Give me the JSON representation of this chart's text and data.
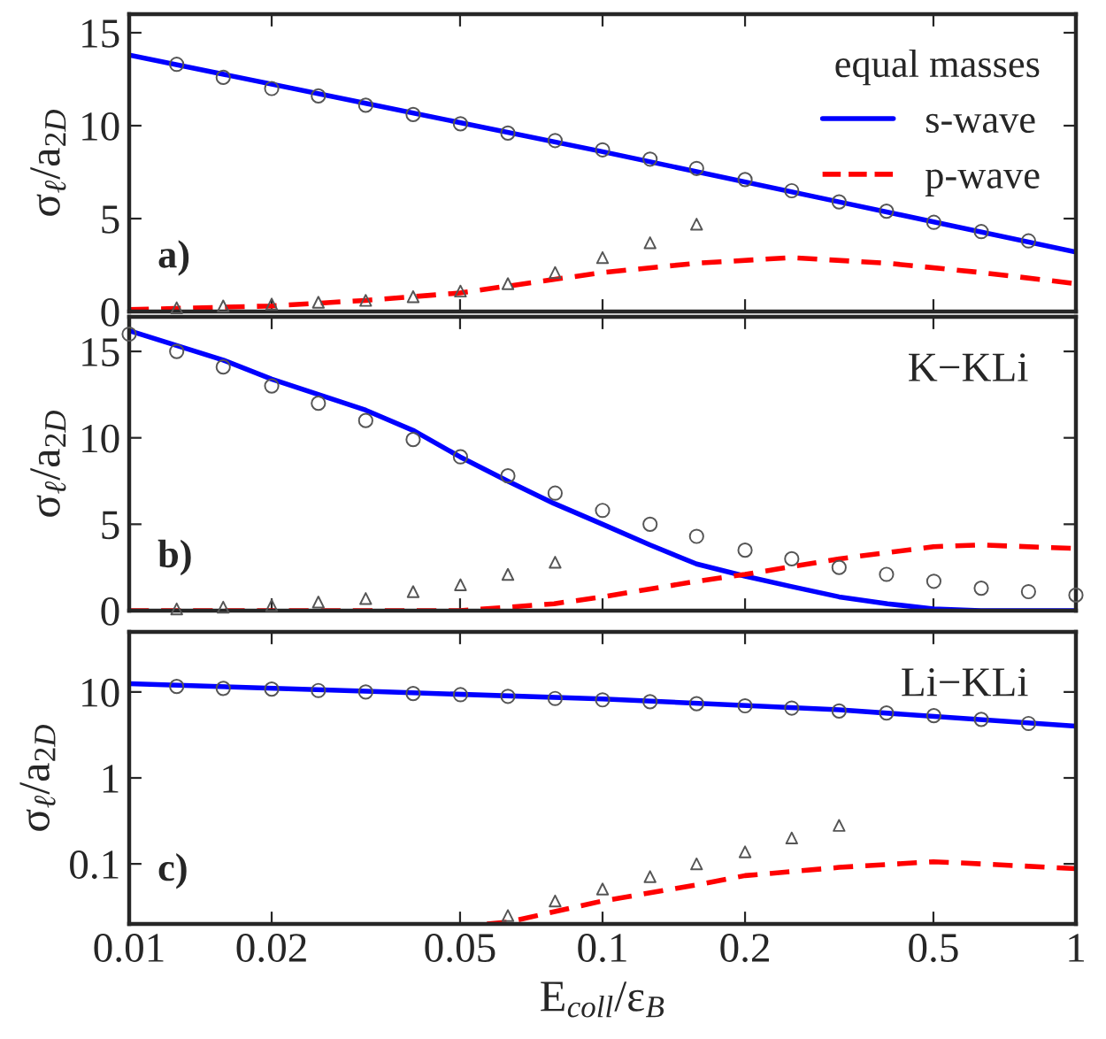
{
  "chart_data": [
    {
      "type": "line",
      "ylabel": "σ$_{ℓ}$/a$_{2D}$",
      "log": "x",
      "xlim": [
        0.01,
        1
      ],
      "xticks": [
        0.01,
        0.02,
        0.05,
        0.1,
        0.2,
        0.5,
        1
      ],
      "ylim": [
        0,
        16
      ],
      "yticks": [
        0,
        5,
        10,
        15
      ],
      "tick_labels": "y",
      "grid": false,
      "legend": "top right",
      "legend_title": "equal masses",
      "annotations": [
        "a)"
      ],
      "series": [
        {
          "name": "s-wave",
          "color": "#0000ff",
          "line_style": "solid",
          "x": [
            0.01,
            0.0316,
            0.1,
            0.316,
            1
          ],
          "values": [
            13.8,
            11.2,
            8.6,
            5.9,
            3.2
          ]
        },
        {
          "name": "p-wave",
          "color": "#ff0000",
          "line_style": "dashed",
          "x": [
            0.01,
            0.02,
            0.0316,
            0.05,
            0.1,
            0.158,
            0.25,
            0.4,
            0.63,
            1
          ],
          "values": [
            0.1,
            0.3,
            0.6,
            1.0,
            2.1,
            2.6,
            2.9,
            2.6,
            2.1,
            1.5
          ]
        },
        {
          "type": "scatter",
          "color": "#555555",
          "marker": "circle",
          "x": [
            0.0126,
            0.0158,
            0.02,
            0.0251,
            0.0316,
            0.0398,
            0.0501,
            0.0631,
            0.0794,
            0.1,
            0.126,
            0.158,
            0.2,
            0.251,
            0.316,
            0.398,
            0.501,
            0.631,
            0.794
          ],
          "values": [
            13.3,
            12.6,
            12.0,
            11.6,
            11.1,
            10.6,
            10.1,
            9.6,
            9.2,
            8.7,
            8.2,
            7.7,
            7.1,
            6.5,
            5.9,
            5.4,
            4.8,
            4.3,
            3.8
          ]
        },
        {
          "type": "scatter",
          "color": "#555555",
          "marker": "triangle",
          "x": [
            0.0126,
            0.0158,
            0.02,
            0.0251,
            0.0316,
            0.0398,
            0.0501,
            0.0631,
            0.0794,
            0.1,
            0.126,
            0.158
          ],
          "values": [
            0.2,
            0.3,
            0.4,
            0.5,
            0.6,
            0.8,
            1.1,
            1.5,
            2.1,
            2.9,
            3.7,
            4.7
          ]
        }
      ]
    },
    {
      "type": "line",
      "ylabel": "σ$_{ℓ}$/a$_{2D}$",
      "log": "x",
      "xlim": [
        0.01,
        1
      ],
      "xticks": [
        0.01,
        0.02,
        0.05,
        0.1,
        0.2,
        0.5,
        1
      ],
      "ylim": [
        0,
        17
      ],
      "yticks": [
        0,
        5,
        10,
        15
      ],
      "tick_labels": "y",
      "grid": false,
      "annotations": [
        "b)",
        "K−KLi"
      ],
      "series": [
        {
          "color": "#0000ff",
          "line_style": "solid",
          "x": [
            0.01,
            0.0158,
            0.02,
            0.0316,
            0.04,
            0.05,
            0.063,
            0.079,
            0.1,
            0.126,
            0.158,
            0.2,
            0.25,
            0.316,
            0.4,
            0.5,
            0.63,
            1
          ],
          "values": [
            16.2,
            14.5,
            13.4,
            11.6,
            10.4,
            8.9,
            7.5,
            6.2,
            5.0,
            3.8,
            2.7,
            2.0,
            1.4,
            0.8,
            0.4,
            0.1,
            0,
            0
          ]
        },
        {
          "color": "#ff0000",
          "line_style": "dashed",
          "x": [
            0.01,
            0.05,
            0.063,
            0.079,
            0.1,
            0.158,
            0.2,
            0.316,
            0.5,
            0.63,
            1
          ],
          "values": [
            0,
            0,
            0.2,
            0.4,
            0.8,
            1.7,
            2.1,
            3.0,
            3.7,
            3.8,
            3.6
          ]
        },
        {
          "type": "scatter",
          "color": "#555555",
          "marker": "circle",
          "x": [
            0.01,
            0.0126,
            0.0158,
            0.02,
            0.0251,
            0.0316,
            0.0398,
            0.0501,
            0.0631,
            0.0794,
            0.1,
            0.126,
            0.158,
            0.2,
            0.251,
            0.316,
            0.398,
            0.501,
            0.631,
            0.794,
            1
          ],
          "values": [
            16.0,
            15.0,
            14.1,
            13.0,
            12.0,
            11.0,
            9.9,
            8.9,
            7.8,
            6.8,
            5.8,
            5.0,
            4.3,
            3.5,
            3.0,
            2.5,
            2.1,
            1.7,
            1.3,
            1.1,
            0.9
          ]
        },
        {
          "type": "scatter",
          "color": "#555555",
          "marker": "triangle",
          "x": [
            0.0126,
            0.0158,
            0.02,
            0.0251,
            0.0316,
            0.0398,
            0.0501,
            0.0631,
            0.0794
          ],
          "values": [
            0.1,
            0.2,
            0.3,
            0.5,
            0.7,
            1.1,
            1.5,
            2.1,
            2.8
          ]
        }
      ]
    },
    {
      "type": "line",
      "xlabel": "E$_{coll}$/ε$_{B}$",
      "ylabel": "σ$_{ℓ}$/a$_{2D}$",
      "log": "xy",
      "xlim": [
        0.01,
        1
      ],
      "xticks": [
        0.01,
        0.02,
        0.05,
        0.1,
        0.2,
        0.5,
        1
      ],
      "ylim": [
        0.02,
        50
      ],
      "yticks": [
        0.1,
        1,
        10
      ],
      "grid": false,
      "annotations": [
        "c)",
        "Li−KLi"
      ],
      "series": [
        {
          "color": "#0000ff",
          "line_style": "solid",
          "x": [
            0.01,
            0.0316,
            0.1,
            0.316,
            1
          ],
          "values": [
            12.5,
            10.2,
            8.3,
            6.2,
            4.0
          ]
        },
        {
          "color": "#ff0000",
          "line_style": "dashed",
          "x": [
            0.057,
            0.063,
            0.1,
            0.158,
            0.2,
            0.316,
            0.5,
            0.63,
            1
          ],
          "values": [
            0.02,
            0.021,
            0.037,
            0.057,
            0.073,
            0.091,
            0.106,
            0.1,
            0.088
          ]
        },
        {
          "type": "scatter",
          "color": "#555555",
          "marker": "circle",
          "x": [
            0.0126,
            0.0158,
            0.02,
            0.0251,
            0.0316,
            0.0398,
            0.0501,
            0.0631,
            0.0794,
            0.1,
            0.126,
            0.158,
            0.2,
            0.251,
            0.316,
            0.398,
            0.501,
            0.631,
            0.794
          ],
          "values": [
            11.6,
            11.0,
            10.8,
            10.4,
            10.0,
            9.6,
            9.3,
            8.9,
            8.4,
            8.1,
            7.7,
            7.3,
            6.9,
            6.5,
            6.0,
            5.7,
            5.3,
            4.8,
            4.3
          ]
        },
        {
          "type": "scatter",
          "color": "#555555",
          "marker": "triangle",
          "x": [
            0.0631,
            0.0794,
            0.1,
            0.126,
            0.158,
            0.2,
            0.251,
            0.316
          ],
          "values": [
            0.025,
            0.037,
            0.051,
            0.071,
            0.1,
            0.138,
            0.2,
            0.28
          ]
        }
      ]
    }
  ]
}
